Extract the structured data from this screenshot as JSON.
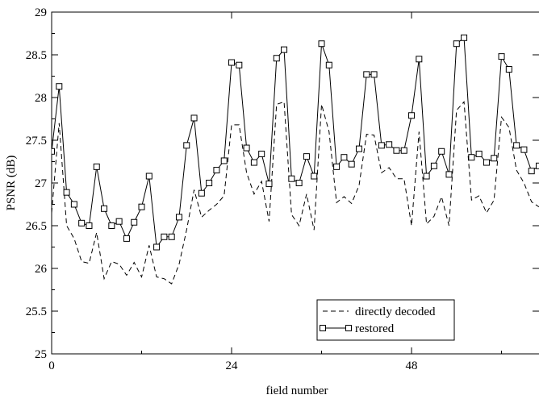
{
  "chart_data": {
    "type": "line",
    "title": "",
    "xlabel": "field number",
    "ylabel": "PSNR (dB)",
    "xlim": [
      0,
      65
    ],
    "ylim": [
      25,
      29
    ],
    "xticks": [
      "0",
      "24",
      "48"
    ],
    "yticks": [
      "25",
      "25.5",
      "26",
      "26.5",
      "27",
      "27.5",
      "28",
      "28.5",
      "29"
    ],
    "grid": false,
    "legend_position": "bottom-right",
    "series": [
      {
        "name": "directly decoded",
        "style": "dashed",
        "color": "#000000",
        "x": [
          0,
          1,
          2,
          3,
          4,
          5,
          6,
          7,
          8,
          9,
          10,
          11,
          12,
          13,
          14,
          15,
          16,
          17,
          18,
          19,
          20,
          21,
          22,
          23,
          24,
          25,
          26,
          27,
          28,
          29,
          30,
          31,
          32,
          33,
          34,
          35,
          36,
          37,
          38,
          39,
          40,
          41,
          42,
          43,
          44,
          45,
          46,
          47,
          48,
          49,
          50,
          51,
          52,
          53,
          54,
          55,
          56,
          57,
          58,
          59,
          60,
          61,
          62,
          63,
          64,
          65
        ],
        "values": [
          26.65,
          27.7,
          26.5,
          26.35,
          26.08,
          26.06,
          26.42,
          25.88,
          26.08,
          26.05,
          25.92,
          26.07,
          25.9,
          26.27,
          25.9,
          25.88,
          25.82,
          26.05,
          26.45,
          26.92,
          26.6,
          26.68,
          26.75,
          26.85,
          27.68,
          27.68,
          27.12,
          26.87,
          27.02,
          26.55,
          27.92,
          27.95,
          26.63,
          26.5,
          26.87,
          26.45,
          27.92,
          27.6,
          26.77,
          26.84,
          26.76,
          26.97,
          27.57,
          27.56,
          27.12,
          27.18,
          27.05,
          27.05,
          26.5,
          27.6,
          26.52,
          26.61,
          26.84,
          26.5,
          27.85,
          27.95,
          26.8,
          26.85,
          26.65,
          26.8,
          27.77,
          27.65,
          27.15,
          27.0,
          26.78,
          26.72
        ]
      },
      {
        "name": "restored",
        "style": "solid-square-markers",
        "color": "#000000",
        "x": [
          0,
          1,
          2,
          3,
          4,
          5,
          6,
          7,
          8,
          9,
          10,
          11,
          12,
          13,
          14,
          15,
          16,
          17,
          18,
          19,
          20,
          21,
          22,
          23,
          24,
          25,
          26,
          27,
          28,
          29,
          30,
          31,
          32,
          33,
          34,
          35,
          36,
          37,
          38,
          39,
          40,
          41,
          42,
          43,
          44,
          45,
          46,
          47,
          48,
          49,
          50,
          51,
          52,
          53,
          54,
          55,
          56,
          57,
          58,
          59,
          60,
          61,
          62,
          63,
          64,
          65
        ],
        "values": [
          27.37,
          28.13,
          26.89,
          26.75,
          26.53,
          26.5,
          27.19,
          26.7,
          26.5,
          26.55,
          26.35,
          26.54,
          26.72,
          27.08,
          26.25,
          26.37,
          26.37,
          26.6,
          27.44,
          27.76,
          26.88,
          27.0,
          27.15,
          27.26,
          28.41,
          28.38,
          27.41,
          27.24,
          27.34,
          26.99,
          28.46,
          28.56,
          27.05,
          27.0,
          27.31,
          27.08,
          28.63,
          28.38,
          27.19,
          27.3,
          27.22,
          27.4,
          28.27,
          28.27,
          27.44,
          27.45,
          27.38,
          27.38,
          27.79,
          28.45,
          27.08,
          27.2,
          27.37,
          27.1,
          28.63,
          28.7,
          27.3,
          27.34,
          27.24,
          27.29,
          28.48,
          28.33,
          27.44,
          27.39,
          27.14,
          27.2
        ]
      }
    ]
  }
}
